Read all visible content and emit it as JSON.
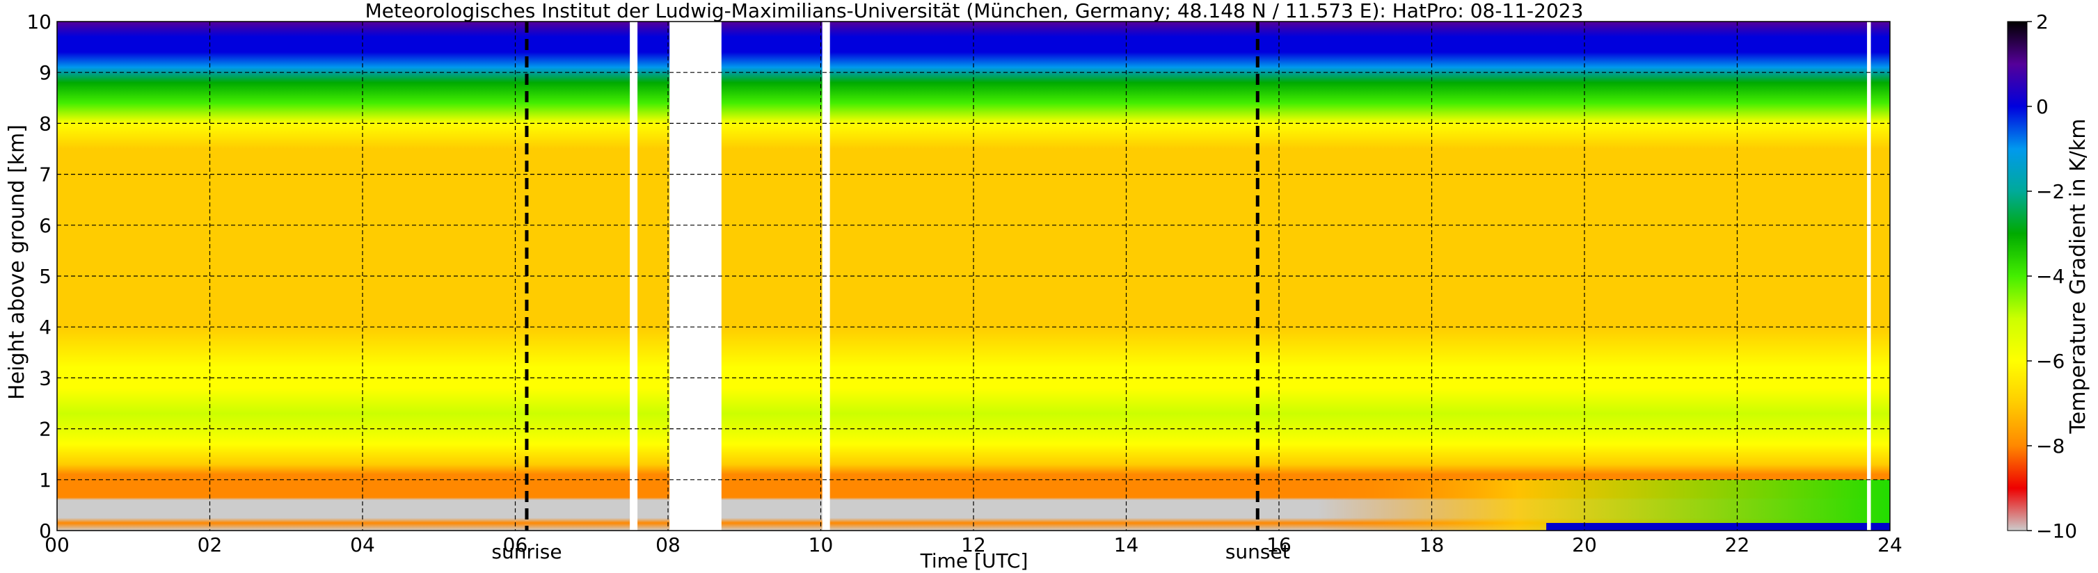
{
  "chart_data": {
    "type": "heatmap",
    "title": "Meteorologisches Institut der Ludwig-Maximilians-Universität (München, Germany; 48.148 N / 11.573 E):    HatPro: 08-11-2023",
    "xlabel": "Time [UTC]",
    "ylabel": "Height above ground [km]",
    "xlim": [
      0,
      24
    ],
    "ylim": [
      0,
      10
    ],
    "x_ticks": [
      "00",
      "02",
      "04",
      "06",
      "08",
      "10",
      "12",
      "14",
      "16",
      "18",
      "20",
      "22",
      "24"
    ],
    "y_ticks": [
      "0",
      "1",
      "2",
      "3",
      "4",
      "5",
      "6",
      "7",
      "8",
      "9",
      "10"
    ],
    "grid": true,
    "colorbar": {
      "label": "Temperature Gradient in K/km",
      "range": [
        -10,
        2
      ],
      "ticks": [
        "−10",
        "−8",
        "−6",
        "−4",
        "−2",
        "0",
        "2"
      ],
      "colors": [
        "#cccccc",
        "#ee0000",
        "#ff8800",
        "#ffcc00",
        "#ffff00",
        "#ccff00",
        "#44ee00",
        "#00aa00",
        "#00aa99",
        "#0099ee",
        "#0000dd",
        "#550099",
        "#000000"
      ]
    },
    "annotations": [
      {
        "text": "sunrise",
        "x": 6.15
      },
      {
        "text": "sunset",
        "x": 15.72
      }
    ],
    "missing_data_utc": [
      [
        7.5,
        7.6
      ],
      [
        8.02,
        8.7
      ],
      [
        10.02,
        10.12
      ],
      [
        23.7,
        23.75
      ]
    ],
    "gradient_profile": [
      {
        "z": 0.0,
        "v": -10
      },
      {
        "z": 0.15,
        "v": -8.5
      },
      {
        "z": 0.25,
        "v": -10
      },
      {
        "z": 0.6,
        "v": -10
      },
      {
        "z": 0.65,
        "v": -8.5
      },
      {
        "z": 1.1,
        "v": -8.5
      },
      {
        "z": 1.3,
        "v": -7.2
      },
      {
        "z": 1.7,
        "v": -6.2
      },
      {
        "z": 2.3,
        "v": -5.2
      },
      {
        "z": 2.8,
        "v": -5.6
      },
      {
        "z": 3.2,
        "v": -6.5
      },
      {
        "z": 4.0,
        "v": -6.9
      },
      {
        "z": 5.0,
        "v": -7.1
      },
      {
        "z": 6.0,
        "v": -7.2
      },
      {
        "z": 7.0,
        "v": -7.1
      },
      {
        "z": 7.5,
        "v": -6.8
      },
      {
        "z": 8.0,
        "v": -6.0
      },
      {
        "z": 8.4,
        "v": -4.5
      },
      {
        "z": 8.8,
        "v": -3.0
      },
      {
        "z": 9.1,
        "v": -1.5
      },
      {
        "z": 9.4,
        "v": -0.5
      },
      {
        "z": 9.7,
        "v": 0.3
      },
      {
        "z": 10.0,
        "v": 1.0
      }
    ]
  }
}
